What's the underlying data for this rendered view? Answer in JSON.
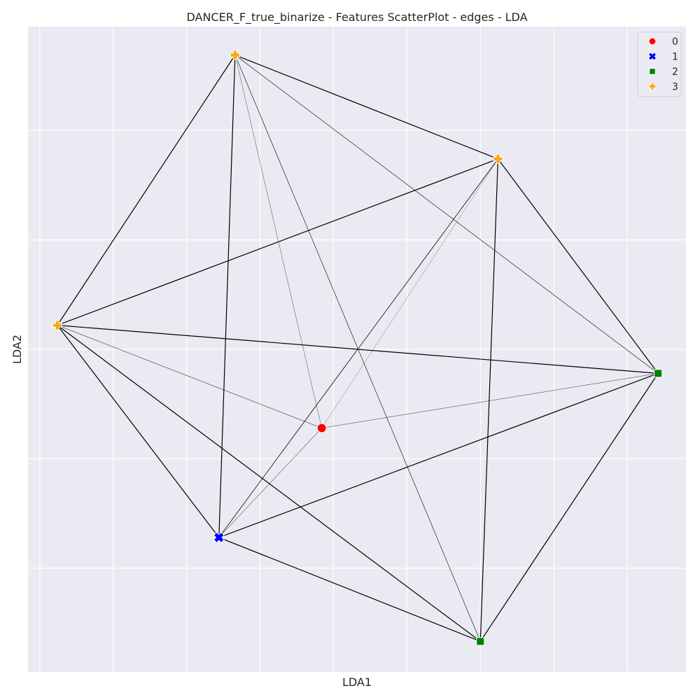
{
  "chart_data": {
    "type": "scatter",
    "title": "DANCER_F_true_binarize - Features ScatterPlot - edges - LDA",
    "xlabel": "LDA1",
    "ylabel": "LDA2",
    "xlim": [
      -0.08,
      4.4
    ],
    "ylim": [
      -2.95,
      2.95
    ],
    "grid": true,
    "background": "#eaeaf2",
    "grid_color": "#ffffff",
    "x_gridlines": [
      0,
      0.5,
      1,
      1.5,
      2,
      2.5,
      3,
      3.5,
      4
    ],
    "y_gridlines": [
      -2,
      -1,
      0,
      1,
      2
    ],
    "legend_position": "top-right",
    "series": [
      {
        "name": "0",
        "marker": "circle",
        "color": "#ff0000",
        "points": [
          {
            "x": 1.92,
            "y": -0.72
          }
        ]
      },
      {
        "name": "1",
        "marker": "x",
        "color": "#0000ff",
        "points": [
          {
            "x": 1.22,
            "y": -1.72
          }
        ]
      },
      {
        "name": "2",
        "marker": "square",
        "color": "#008000",
        "points": [
          {
            "x": 3.0,
            "y": -2.67
          },
          {
            "x": 4.21,
            "y": -0.22
          }
        ]
      },
      {
        "name": "3",
        "marker": "plus",
        "color": "#ffa500",
        "points": [
          {
            "x": 0.12,
            "y": 0.22
          },
          {
            "x": 1.33,
            "y": 2.69
          },
          {
            "x": 3.12,
            "y": 1.74
          }
        ]
      }
    ],
    "edges": [
      {
        "from": [
          0.12,
          0.22
        ],
        "to": [
          1.33,
          2.69
        ],
        "weight": 1.2
      },
      {
        "from": [
          0.12,
          0.22
        ],
        "to": [
          3.12,
          1.74
        ],
        "weight": 1.2
      },
      {
        "from": [
          0.12,
          0.22
        ],
        "to": [
          4.21,
          -0.22
        ],
        "weight": 1.2
      },
      {
        "from": [
          0.12,
          0.22
        ],
        "to": [
          1.22,
          -1.72
        ],
        "weight": 1.2
      },
      {
        "from": [
          0.12,
          0.22
        ],
        "to": [
          3.0,
          -2.67
        ],
        "weight": 1.2
      },
      {
        "from": [
          0.12,
          0.22
        ],
        "to": [
          1.92,
          -0.72
        ],
        "weight": 0.5
      },
      {
        "from": [
          1.33,
          2.69
        ],
        "to": [
          3.12,
          1.74
        ],
        "weight": 1.2
      },
      {
        "from": [
          1.33,
          2.69
        ],
        "to": [
          1.22,
          -1.72
        ],
        "weight": 1.2
      },
      {
        "from": [
          1.33,
          2.69
        ],
        "to": [
          4.21,
          -0.22
        ],
        "weight": 0.6
      },
      {
        "from": [
          1.33,
          2.69
        ],
        "to": [
          3.0,
          -2.67
        ],
        "weight": 0.6
      },
      {
        "from": [
          1.33,
          2.69
        ],
        "to": [
          1.92,
          -0.72
        ],
        "weight": 0.35
      },
      {
        "from": [
          3.12,
          1.74
        ],
        "to": [
          4.21,
          -0.22
        ],
        "weight": 1.2
      },
      {
        "from": [
          3.12,
          1.74
        ],
        "to": [
          3.0,
          -2.67
        ],
        "weight": 1.2
      },
      {
        "from": [
          3.12,
          1.74
        ],
        "to": [
          1.22,
          -1.72
        ],
        "weight": 0.8
      },
      {
        "from": [
          3.12,
          1.74
        ],
        "to": [
          1.92,
          -0.72
        ],
        "weight": 0.25
      },
      {
        "from": [
          4.21,
          -0.22
        ],
        "to": [
          1.22,
          -1.72
        ],
        "weight": 1.2
      },
      {
        "from": [
          4.21,
          -0.22
        ],
        "to": [
          3.0,
          -2.67
        ],
        "weight": 1.2
      },
      {
        "from": [
          4.21,
          -0.22
        ],
        "to": [
          1.92,
          -0.72
        ],
        "weight": 0.4
      },
      {
        "from": [
          1.22,
          -1.72
        ],
        "to": [
          3.0,
          -2.67
        ],
        "weight": 1.2
      },
      {
        "from": [
          1.22,
          -1.72
        ],
        "to": [
          1.92,
          -0.72
        ],
        "weight": 0.5
      }
    ]
  }
}
